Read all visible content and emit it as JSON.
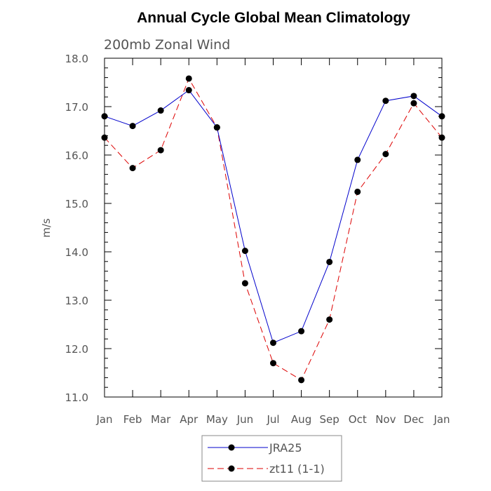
{
  "chart_data": {
    "type": "line",
    "title": "Annual Cycle Global Mean Climatology",
    "subtitle": "200mb Zonal Wind",
    "xlabel": "",
    "ylabel": "m/s",
    "categories": [
      "Jan",
      "Feb",
      "Mar",
      "Apr",
      "May",
      "Jun",
      "Jul",
      "Aug",
      "Sep",
      "Oct",
      "Nov",
      "Dec",
      "Jan"
    ],
    "ylim": [
      11.0,
      18.0
    ],
    "yticks": [
      "11.0",
      "12.0",
      "13.0",
      "14.0",
      "15.0",
      "16.0",
      "17.0",
      "18.0"
    ],
    "grid": false,
    "legend_position": "bottom-center",
    "series": [
      {
        "name": "JRA25",
        "color": "#0000cc",
        "dash": "solid",
        "marker": "filled-circle",
        "values": [
          16.8,
          16.6,
          16.92,
          17.34,
          16.57,
          14.02,
          12.12,
          12.36,
          13.79,
          15.9,
          17.12,
          17.22,
          16.8
        ]
      },
      {
        "name": "zt11 (1-1)",
        "color": "#dd0000",
        "dash": "dashed",
        "marker": "filled-circle",
        "values": [
          16.36,
          15.73,
          16.1,
          17.58,
          16.57,
          13.35,
          11.7,
          11.35,
          12.6,
          15.24,
          16.02,
          17.07,
          16.36
        ]
      }
    ]
  }
}
